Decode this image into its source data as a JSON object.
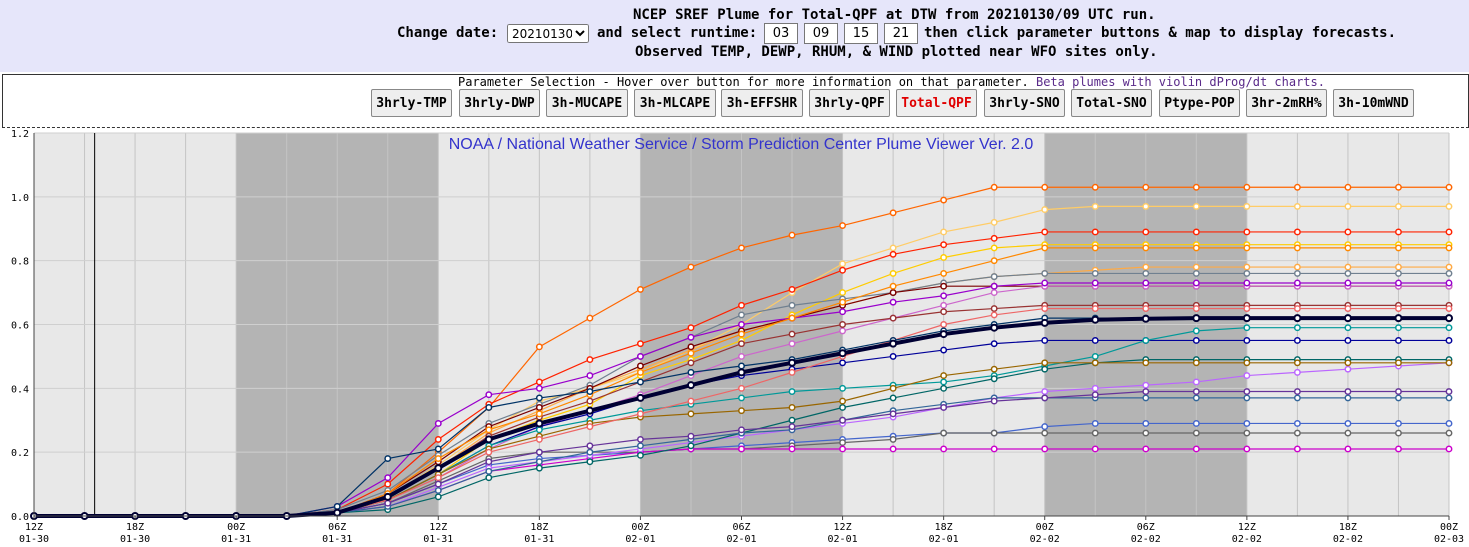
{
  "header": {
    "title": "NCEP SREF Plume for Total-QPF at DTW from 20210130/09 UTC run.",
    "change_date_label": "Change date:",
    "date_value": "20210130",
    "runtime_label": "and select runtime:",
    "runtimes": [
      "03",
      "09",
      "15",
      "21"
    ],
    "instructions": "then click parameter buttons & map to display forecasts.",
    "observed_note": "Observed TEMP, DEWP, RHUM, & WIND plotted near WFO sites only."
  },
  "params": {
    "title": "Parameter Selection - Hover over button for more information on that parameter.",
    "beta_link": "Beta plumes with violin dProg/dt charts.",
    "buttons": [
      "3hrly-TMP",
      "3hrly-DWP",
      "3h-MUCAPE",
      "3h-MLCAPE",
      "3h-EFFSHR",
      "3hrly-QPF",
      "Total-QPF",
      "3hrly-SNO",
      "Total-SNO",
      "Ptype-POP",
      "3hr-2mRH%",
      "3h-10mWND"
    ],
    "active": "Total-QPF"
  },
  "chart_data": {
    "type": "line",
    "banner": "NOAA / National Weather Service / Storm Prediction Center Plume Viewer Ver. 2.0",
    "ylim": [
      0,
      1.2
    ],
    "yticks": [
      "0.0",
      "0.2",
      "0.4",
      "0.6",
      "0.8",
      "1.0",
      "1.2"
    ],
    "xticks": [
      [
        "12Z",
        "01-30"
      ],
      [
        "18Z",
        "01-30"
      ],
      [
        "00Z",
        "01-31"
      ],
      [
        "06Z",
        "01-31"
      ],
      [
        "12Z",
        "01-31"
      ],
      [
        "18Z",
        "01-31"
      ],
      [
        "00Z",
        "02-01"
      ],
      [
        "06Z",
        "02-01"
      ],
      [
        "12Z",
        "02-01"
      ],
      [
        "18Z",
        "02-01"
      ],
      [
        "00Z",
        "02-02"
      ],
      [
        "06Z",
        "02-02"
      ],
      [
        "12Z",
        "02-02"
      ],
      [
        "18Z",
        "02-02"
      ],
      [
        "00Z",
        "02-03"
      ]
    ],
    "x_hours": [
      0,
      3,
      6,
      9,
      12,
      15,
      18,
      21,
      24,
      27,
      30,
      33,
      36,
      39,
      42,
      45,
      48,
      51,
      54,
      57,
      60,
      63,
      66,
      69,
      72,
      75,
      78,
      81,
      84
    ],
    "night_shading_hours": [
      [
        12,
        24
      ],
      [
        36,
        48
      ],
      [
        60,
        72
      ]
    ],
    "current_time_hour": 3.6,
    "grid": true,
    "colors": [
      "#ff6600",
      "#ffcc66",
      "#ff2200",
      "#ffcc00",
      "#ffaa44",
      "#708090",
      "#7a0000",
      "#cc66cc",
      "#9900cc",
      "#993333",
      "#000099",
      "#009999",
      "#4466cc",
      "#666666",
      "#cc00cc",
      "#bb66ff",
      "#006666",
      "#996600",
      "#336699",
      "#ff8800",
      "#ee6666",
      "#663399",
      "#003366"
    ],
    "series": [
      {
        "values": [
          0,
          0,
          0,
          0,
          0,
          0,
          0.01,
          0.07,
          0.2,
          0.34,
          0.53,
          0.62,
          0.71,
          0.78,
          0.84,
          0.88,
          0.91,
          0.95,
          0.99,
          1.03,
          1.03,
          1.03,
          1.03,
          1.03,
          1.03,
          1.03,
          1.03,
          1.03,
          1.03
        ]
      },
      {
        "values": [
          0,
          0,
          0,
          0,
          0,
          0,
          0.01,
          0.06,
          0.16,
          0.27,
          0.36,
          0.4,
          0.45,
          0.52,
          0.6,
          0.7,
          0.79,
          0.84,
          0.89,
          0.92,
          0.96,
          0.97,
          0.97,
          0.97,
          0.97,
          0.97,
          0.97,
          0.97,
          0.97
        ]
      },
      {
        "values": [
          0,
          0,
          0,
          0,
          0,
          0,
          0.02,
          0.1,
          0.24,
          0.35,
          0.42,
          0.49,
          0.54,
          0.59,
          0.66,
          0.71,
          0.77,
          0.82,
          0.85,
          0.87,
          0.89,
          0.89,
          0.89,
          0.89,
          0.89,
          0.89,
          0.89,
          0.89,
          0.89
        ]
      },
      {
        "values": [
          0,
          0,
          0,
          0,
          0,
          0,
          0.01,
          0.05,
          0.13,
          0.24,
          0.3,
          0.35,
          0.44,
          0.49,
          0.55,
          0.63,
          0.7,
          0.76,
          0.81,
          0.84,
          0.85,
          0.85,
          0.85,
          0.85,
          0.85,
          0.85,
          0.85,
          0.85,
          0.85
        ]
      },
      {
        "values": [
          0,
          0,
          0,
          0,
          0,
          0,
          0.01,
          0.06,
          0.15,
          0.26,
          0.33,
          0.4,
          0.46,
          0.52,
          0.58,
          0.62,
          0.66,
          0.7,
          0.73,
          0.75,
          0.76,
          0.77,
          0.78,
          0.78,
          0.78,
          0.78,
          0.78,
          0.78,
          0.78
        ]
      },
      {
        "values": [
          0,
          0,
          0,
          0,
          0,
          0,
          0.02,
          0.08,
          0.19,
          0.29,
          0.35,
          0.41,
          0.5,
          0.56,
          0.63,
          0.66,
          0.68,
          0.7,
          0.73,
          0.75,
          0.76,
          0.76,
          0.76,
          0.76,
          0.76,
          0.76,
          0.76,
          0.76,
          0.76
        ]
      },
      {
        "values": [
          0,
          0,
          0,
          0,
          0,
          0,
          0.01,
          0.07,
          0.17,
          0.28,
          0.34,
          0.4,
          0.47,
          0.53,
          0.58,
          0.62,
          0.66,
          0.7,
          0.72,
          0.72,
          0.72,
          0.72,
          0.72,
          0.72,
          0.72,
          0.72,
          0.72,
          0.72,
          0.72
        ]
      },
      {
        "values": [
          0,
          0,
          0,
          0,
          0,
          0,
          0.01,
          0.05,
          0.12,
          0.21,
          0.28,
          0.33,
          0.38,
          0.44,
          0.5,
          0.54,
          0.58,
          0.62,
          0.66,
          0.7,
          0.72,
          0.72,
          0.72,
          0.72,
          0.72,
          0.72,
          0.72,
          0.72,
          0.72
        ]
      },
      {
        "values": [
          0,
          0,
          0,
          0,
          0,
          0,
          0.03,
          0.12,
          0.29,
          0.38,
          0.4,
          0.44,
          0.5,
          0.56,
          0.6,
          0.62,
          0.64,
          0.67,
          0.69,
          0.72,
          0.73,
          0.73,
          0.73,
          0.73,
          0.73,
          0.73,
          0.73,
          0.73,
          0.73
        ]
      },
      {
        "values": [
          0,
          0,
          0,
          0,
          0,
          0,
          0.01,
          0.06,
          0.15,
          0.25,
          0.31,
          0.36,
          0.42,
          0.48,
          0.54,
          0.57,
          0.6,
          0.62,
          0.64,
          0.65,
          0.66,
          0.66,
          0.66,
          0.66,
          0.66,
          0.66,
          0.66,
          0.66,
          0.66
        ]
      },
      {
        "values": [
          0,
          0,
          0,
          0,
          0,
          0,
          0.01,
          0.05,
          0.13,
          0.22,
          0.28,
          0.32,
          0.37,
          0.41,
          0.44,
          0.46,
          0.48,
          0.5,
          0.52,
          0.54,
          0.55,
          0.55,
          0.55,
          0.55,
          0.55,
          0.55,
          0.55,
          0.55,
          0.55
        ]
      },
      {
        "values": [
          0,
          0,
          0,
          0,
          0,
          0,
          0.01,
          0.05,
          0.13,
          0.22,
          0.27,
          0.3,
          0.33,
          0.35,
          0.37,
          0.39,
          0.4,
          0.41,
          0.42,
          0.44,
          0.47,
          0.5,
          0.55,
          0.58,
          0.59,
          0.59,
          0.59,
          0.59,
          0.59
        ]
      },
      {
        "values": [
          0,
          0,
          0,
          0,
          0,
          0,
          0.01,
          0.04,
          0.1,
          0.16,
          0.18,
          0.19,
          0.2,
          0.21,
          0.22,
          0.23,
          0.24,
          0.25,
          0.26,
          0.26,
          0.28,
          0.29,
          0.29,
          0.29,
          0.29,
          0.29,
          0.29,
          0.29,
          0.29
        ]
      },
      {
        "values": [
          0,
          0,
          0,
          0,
          0,
          0,
          0.01,
          0.04,
          0.11,
          0.18,
          0.2,
          0.2,
          0.2,
          0.21,
          0.21,
          0.22,
          0.23,
          0.24,
          0.26,
          0.26,
          0.26,
          0.26,
          0.26,
          0.26,
          0.26,
          0.26,
          0.26,
          0.26,
          0.26
        ]
      },
      {
        "values": [
          0,
          0,
          0,
          0,
          0,
          0,
          0.01,
          0.03,
          0.08,
          0.14,
          0.16,
          0.18,
          0.2,
          0.21,
          0.21,
          0.21,
          0.21,
          0.21,
          0.21,
          0.21,
          0.21,
          0.21,
          0.21,
          0.21,
          0.21,
          0.21,
          0.21,
          0.21,
          0.21
        ]
      },
      {
        "values": [
          0,
          0,
          0,
          0,
          0,
          0,
          0.01,
          0.03,
          0.09,
          0.15,
          0.17,
          0.19,
          0.21,
          0.23,
          0.25,
          0.27,
          0.29,
          0.31,
          0.34,
          0.37,
          0.39,
          0.4,
          0.41,
          0.42,
          0.44,
          0.45,
          0.46,
          0.47,
          0.48
        ]
      },
      {
        "values": [
          0,
          0,
          0,
          0,
          0,
          0,
          0.01,
          0.02,
          0.06,
          0.12,
          0.15,
          0.17,
          0.19,
          0.22,
          0.26,
          0.3,
          0.34,
          0.37,
          0.4,
          0.43,
          0.46,
          0.48,
          0.49,
          0.49,
          0.49,
          0.49,
          0.49,
          0.49,
          0.49
        ]
      },
      {
        "values": [
          0,
          0,
          0,
          0,
          0,
          0,
          0.01,
          0.05,
          0.13,
          0.21,
          0.25,
          0.29,
          0.31,
          0.32,
          0.33,
          0.34,
          0.36,
          0.4,
          0.44,
          0.46,
          0.48,
          0.48,
          0.48,
          0.48,
          0.48,
          0.48,
          0.48,
          0.48,
          0.48
        ]
      },
      {
        "values": [
          0,
          0,
          0,
          0,
          0,
          0,
          0.01,
          0.03,
          0.08,
          0.14,
          0.17,
          0.2,
          0.22,
          0.24,
          0.26,
          0.27,
          0.3,
          0.33,
          0.35,
          0.37,
          0.37,
          0.37,
          0.37,
          0.37,
          0.37,
          0.37,
          0.37,
          0.37,
          0.37
        ]
      },
      {
        "values": [
          0,
          0,
          0,
          0,
          0,
          0,
          0.01,
          0.07,
          0.18,
          0.27,
          0.32,
          0.38,
          0.45,
          0.51,
          0.57,
          0.62,
          0.67,
          0.72,
          0.76,
          0.8,
          0.84,
          0.84,
          0.84,
          0.84,
          0.84,
          0.84,
          0.84,
          0.84,
          0.84
        ]
      },
      {
        "values": [
          0,
          0,
          0,
          0,
          0,
          0,
          0.01,
          0.05,
          0.12,
          0.2,
          0.24,
          0.28,
          0.32,
          0.36,
          0.4,
          0.45,
          0.5,
          0.55,
          0.6,
          0.63,
          0.65,
          0.65,
          0.65,
          0.65,
          0.65,
          0.65,
          0.65,
          0.65,
          0.65
        ]
      },
      {
        "values": [
          0,
          0,
          0,
          0,
          0,
          0,
          0.01,
          0.04,
          0.1,
          0.17,
          0.2,
          0.22,
          0.24,
          0.25,
          0.27,
          0.28,
          0.3,
          0.32,
          0.34,
          0.36,
          0.37,
          0.38,
          0.39,
          0.39,
          0.39,
          0.39,
          0.39,
          0.39,
          0.39
        ]
      },
      {
        "values": [
          0,
          0,
          0,
          0,
          0,
          0,
          0.03,
          0.18,
          0.21,
          0.34,
          0.37,
          0.39,
          0.42,
          0.45,
          0.47,
          0.49,
          0.52,
          0.55,
          0.58,
          0.6,
          0.62,
          0.62,
          0.62,
          0.62,
          0.62,
          0.62,
          0.62,
          0.62,
          0.62
        ]
      }
    ],
    "mean": [
      0,
      0,
      0,
      0,
      0,
      0,
      0.01,
      0.06,
      0.15,
      0.24,
      0.29,
      0.33,
      0.37,
      0.41,
      0.45,
      0.48,
      0.51,
      0.54,
      0.57,
      0.59,
      0.605,
      0.615,
      0.618,
      0.62,
      0.62,
      0.62,
      0.62,
      0.62,
      0.62
    ]
  }
}
